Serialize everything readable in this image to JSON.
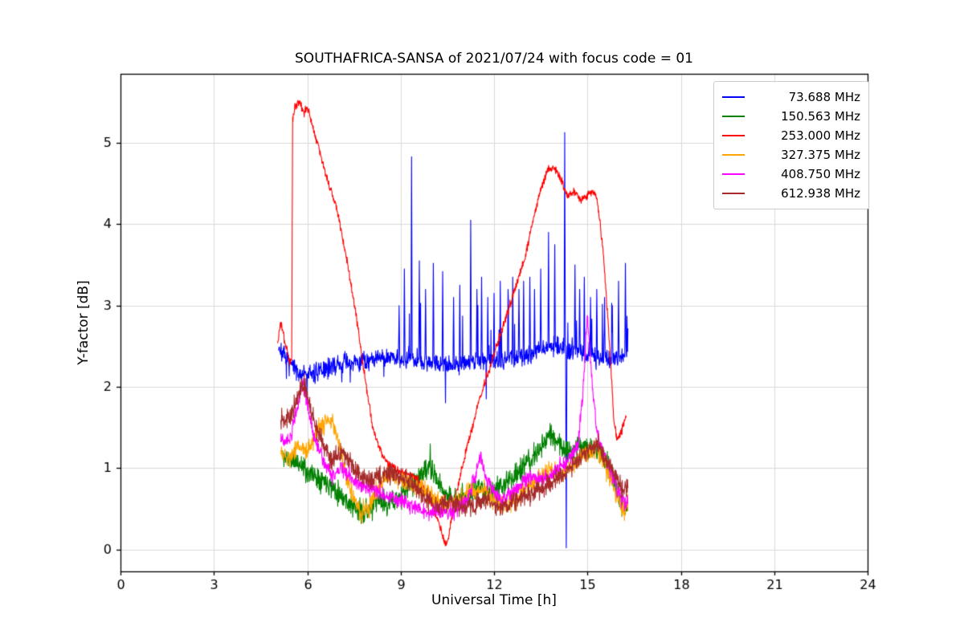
{
  "chart_data": {
    "type": "line",
    "title": "SOUTHAFRICA-SANSA of 2021/07/24 with focus code = 01",
    "xlabel": "Universal Time [h]",
    "ylabel": "Y-factor [dB]",
    "xlim": [
      0,
      24
    ],
    "ylim": [
      -0.27,
      5.85
    ],
    "xticks": [
      0,
      3,
      6,
      9,
      12,
      15,
      18,
      21,
      24
    ],
    "yticks": [
      0,
      1,
      2,
      3,
      4,
      5
    ],
    "grid": true,
    "legend_position": "upper right",
    "series": [
      {
        "name": "73.688 MHz",
        "label": " 73.688 MHz",
        "color": "#0000ff",
        "noise": 0.12,
        "hairy": true,
        "seed": 7,
        "anchors": [
          [
            5.08,
            2.5
          ],
          [
            5.3,
            2.35
          ],
          [
            5.6,
            2.2
          ],
          [
            6.0,
            2.15
          ],
          [
            6.5,
            2.2
          ],
          [
            7.0,
            2.28
          ],
          [
            7.5,
            2.3
          ],
          [
            8.0,
            2.33
          ],
          [
            8.5,
            2.38
          ],
          [
            9.0,
            2.35
          ],
          [
            9.5,
            2.33
          ],
          [
            10.0,
            2.3
          ],
          [
            10.5,
            2.27
          ],
          [
            11.0,
            2.3
          ],
          [
            11.5,
            2.33
          ],
          [
            12.0,
            2.3
          ],
          [
            12.5,
            2.34
          ],
          [
            13.0,
            2.4
          ],
          [
            13.5,
            2.45
          ],
          [
            14.0,
            2.5
          ],
          [
            14.5,
            2.45
          ],
          [
            15.0,
            2.4
          ],
          [
            15.5,
            2.35
          ],
          [
            16.0,
            2.32
          ],
          [
            16.3,
            2.45
          ]
        ],
        "spikes": [
          [
            8.95,
            3.0
          ],
          [
            9.12,
            3.45
          ],
          [
            9.35,
            4.83
          ],
          [
            9.6,
            3.55
          ],
          [
            9.8,
            3.2
          ],
          [
            10.05,
            3.52
          ],
          [
            10.35,
            3.42
          ],
          [
            10.7,
            3.1
          ],
          [
            10.9,
            3.25
          ],
          [
            11.25,
            4.05
          ],
          [
            11.45,
            3.2
          ],
          [
            11.6,
            3.35
          ],
          [
            11.8,
            3.1
          ],
          [
            12.0,
            3.15
          ],
          [
            12.2,
            3.3
          ],
          [
            12.45,
            3.2
          ],
          [
            12.6,
            3.35
          ],
          [
            12.8,
            3.2
          ],
          [
            12.95,
            3.3
          ],
          [
            13.15,
            3.35
          ],
          [
            13.3,
            3.2
          ],
          [
            13.5,
            3.45
          ],
          [
            13.75,
            3.9
          ],
          [
            13.95,
            3.75
          ],
          [
            14.27,
            5.13
          ],
          [
            14.32,
            0.02
          ],
          [
            14.6,
            3.5
          ],
          [
            14.75,
            3.2
          ],
          [
            14.9,
            3.35
          ],
          [
            15.1,
            3.1
          ],
          [
            15.3,
            3.2
          ],
          [
            15.55,
            3.1
          ],
          [
            15.8,
            3.0
          ],
          [
            16.0,
            3.3
          ],
          [
            16.22,
            3.52
          ]
        ]
      },
      {
        "name": "150.563 MHz",
        "label": "150.563 MHz",
        "color": "#008000",
        "noise": 0.14,
        "hairy": false,
        "seed": 11,
        "anchors": [
          [
            5.2,
            1.15
          ],
          [
            5.5,
            1.1
          ],
          [
            5.8,
            1.05
          ],
          [
            6.0,
            0.95
          ],
          [
            6.3,
            0.9
          ],
          [
            6.6,
            0.85
          ],
          [
            7.0,
            0.7
          ],
          [
            7.4,
            0.55
          ],
          [
            7.7,
            0.45
          ],
          [
            8.0,
            0.5
          ],
          [
            8.3,
            0.6
          ],
          [
            8.6,
            0.55
          ],
          [
            9.0,
            0.65
          ],
          [
            9.3,
            0.8
          ],
          [
            9.6,
            0.9
          ],
          [
            9.9,
            1.0
          ],
          [
            10.1,
            0.9
          ],
          [
            10.4,
            0.7
          ],
          [
            10.7,
            0.6
          ],
          [
            11.0,
            0.65
          ],
          [
            11.3,
            0.7
          ],
          [
            11.6,
            0.75
          ],
          [
            12.0,
            0.7
          ],
          [
            12.3,
            0.8
          ],
          [
            12.6,
            0.9
          ],
          [
            12.9,
            1.0
          ],
          [
            13.2,
            1.1
          ],
          [
            13.5,
            1.25
          ],
          [
            13.8,
            1.4
          ],
          [
            14.1,
            1.3
          ],
          [
            14.4,
            1.2
          ],
          [
            14.7,
            1.3
          ],
          [
            15.0,
            1.25
          ],
          [
            15.3,
            1.2
          ],
          [
            15.6,
            1.1
          ],
          [
            15.9,
            0.8
          ],
          [
            16.1,
            0.5
          ],
          [
            16.3,
            0.55
          ]
        ],
        "spikes": [
          [
            9.95,
            1.3
          ],
          [
            13.8,
            1.55
          ]
        ]
      },
      {
        "name": "253.000 MHz",
        "label": "253.000 MHz",
        "color": "#ff0000",
        "noise": 0.05,
        "hairy": false,
        "seed": 3,
        "anchors": [
          [
            5.05,
            2.55
          ],
          [
            5.15,
            2.8
          ],
          [
            5.3,
            2.5
          ],
          [
            5.45,
            2.3
          ],
          [
            5.5,
            2.35
          ],
          [
            5.53,
            5.3
          ],
          [
            5.6,
            5.45
          ],
          [
            5.75,
            5.5
          ],
          [
            5.9,
            5.35
          ],
          [
            6.0,
            5.45
          ],
          [
            6.1,
            5.3
          ],
          [
            6.3,
            5.05
          ],
          [
            6.6,
            4.6
          ],
          [
            6.9,
            4.25
          ],
          [
            7.0,
            4.1
          ],
          [
            7.3,
            3.5
          ],
          [
            7.6,
            2.8
          ],
          [
            7.9,
            2.0
          ],
          [
            8.1,
            1.5
          ],
          [
            8.3,
            1.25
          ],
          [
            8.6,
            1.05
          ],
          [
            9.0,
            0.95
          ],
          [
            9.4,
            0.9
          ],
          [
            9.7,
            0.8
          ],
          [
            10.0,
            0.55
          ],
          [
            10.2,
            0.35
          ],
          [
            10.45,
            0.05
          ],
          [
            10.55,
            0.15
          ],
          [
            10.7,
            0.55
          ],
          [
            11.0,
            1.05
          ],
          [
            11.5,
            1.8
          ],
          [
            12.0,
            2.4
          ],
          [
            12.5,
            3.0
          ],
          [
            13.0,
            3.6
          ],
          [
            13.4,
            4.3
          ],
          [
            13.7,
            4.65
          ],
          [
            13.9,
            4.7
          ],
          [
            14.1,
            4.6
          ],
          [
            14.35,
            4.35
          ],
          [
            14.6,
            4.4
          ],
          [
            14.8,
            4.3
          ],
          [
            15.1,
            4.4
          ],
          [
            15.3,
            4.35
          ],
          [
            15.5,
            3.7
          ],
          [
            15.7,
            2.6
          ],
          [
            15.85,
            1.6
          ],
          [
            15.95,
            1.35
          ],
          [
            16.1,
            1.45
          ],
          [
            16.25,
            1.65
          ]
        ],
        "spikes": []
      },
      {
        "name": "327.375 MHz",
        "label": "327.375 MHz",
        "color": "#ffa500",
        "noise": 0.12,
        "hairy": false,
        "seed": 5,
        "anchors": [
          [
            5.15,
            1.2
          ],
          [
            5.4,
            1.1
          ],
          [
            5.7,
            1.3
          ],
          [
            6.0,
            1.2
          ],
          [
            6.3,
            1.45
          ],
          [
            6.6,
            1.6
          ],
          [
            6.9,
            1.5
          ],
          [
            7.2,
            1.0
          ],
          [
            7.5,
            0.6
          ],
          [
            7.75,
            0.45
          ],
          [
            8.0,
            0.55
          ],
          [
            8.3,
            0.8
          ],
          [
            8.6,
            0.9
          ],
          [
            9.0,
            0.85
          ],
          [
            9.3,
            0.8
          ],
          [
            9.6,
            0.75
          ],
          [
            9.9,
            0.7
          ],
          [
            10.2,
            0.6
          ],
          [
            10.5,
            0.55
          ],
          [
            10.8,
            0.6
          ],
          [
            11.1,
            0.7
          ],
          [
            11.4,
            0.75
          ],
          [
            11.7,
            0.7
          ],
          [
            12.0,
            0.6
          ],
          [
            12.3,
            0.55
          ],
          [
            12.6,
            0.6
          ],
          [
            12.9,
            0.7
          ],
          [
            13.2,
            0.8
          ],
          [
            13.5,
            0.9
          ],
          [
            13.8,
            1.0
          ],
          [
            14.1,
            0.9
          ],
          [
            14.4,
            1.0
          ],
          [
            14.7,
            1.1
          ],
          [
            15.0,
            1.2
          ],
          [
            15.3,
            1.25
          ],
          [
            15.6,
            1.0
          ],
          [
            15.9,
            0.7
          ],
          [
            16.1,
            0.5
          ],
          [
            16.3,
            0.55
          ]
        ],
        "spikes": []
      },
      {
        "name": "408.750 MHz",
        "label": "408.750 MHz",
        "color": "#ff00ff",
        "noise": 0.1,
        "hairy": false,
        "seed": 9,
        "anchors": [
          [
            5.15,
            1.35
          ],
          [
            5.4,
            1.3
          ],
          [
            5.6,
            1.6
          ],
          [
            5.85,
            2.05
          ],
          [
            6.0,
            1.8
          ],
          [
            6.2,
            1.4
          ],
          [
            6.5,
            1.1
          ],
          [
            6.8,
            0.9
          ],
          [
            7.1,
            1.0
          ],
          [
            7.4,
            0.9
          ],
          [
            7.7,
            0.8
          ],
          [
            8.0,
            0.75
          ],
          [
            8.3,
            0.7
          ],
          [
            8.6,
            0.65
          ],
          [
            9.0,
            0.6
          ],
          [
            9.3,
            0.55
          ],
          [
            9.6,
            0.5
          ],
          [
            9.9,
            0.45
          ],
          [
            10.2,
            0.5
          ],
          [
            10.5,
            0.45
          ],
          [
            10.8,
            0.5
          ],
          [
            11.1,
            0.6
          ],
          [
            11.4,
            0.9
          ],
          [
            11.55,
            1.15
          ],
          [
            11.7,
            0.9
          ],
          [
            12.0,
            0.7
          ],
          [
            12.3,
            0.6
          ],
          [
            12.6,
            0.7
          ],
          [
            12.9,
            0.8
          ],
          [
            13.2,
            0.9
          ],
          [
            13.5,
            0.85
          ],
          [
            13.8,
            0.9
          ],
          [
            14.1,
            1.0
          ],
          [
            14.4,
            1.1
          ],
          [
            14.7,
            1.3
          ],
          [
            14.85,
            1.9
          ],
          [
            15.0,
            2.9
          ],
          [
            15.1,
            2.3
          ],
          [
            15.25,
            1.6
          ],
          [
            15.4,
            1.3
          ],
          [
            15.6,
            1.1
          ],
          [
            15.9,
            0.8
          ],
          [
            16.1,
            0.6
          ],
          [
            16.3,
            0.6
          ]
        ],
        "spikes": []
      },
      {
        "name": "612.938 MHz",
        "label": "612.938 MHz",
        "color": "#a52a2a",
        "noise": 0.12,
        "hairy": false,
        "seed": 13,
        "anchors": [
          [
            5.15,
            1.65
          ],
          [
            5.4,
            1.6
          ],
          [
            5.6,
            1.75
          ],
          [
            5.85,
            2.05
          ],
          [
            6.0,
            1.9
          ],
          [
            6.2,
            1.6
          ],
          [
            6.5,
            1.3
          ],
          [
            6.8,
            1.1
          ],
          [
            7.1,
            1.2
          ],
          [
            7.4,
            1.05
          ],
          [
            7.7,
            0.9
          ],
          [
            8.0,
            0.85
          ],
          [
            8.3,
            0.9
          ],
          [
            8.6,
            0.95
          ],
          [
            9.0,
            0.9
          ],
          [
            9.3,
            0.85
          ],
          [
            9.6,
            0.7
          ],
          [
            9.9,
            0.6
          ],
          [
            10.2,
            0.55
          ],
          [
            10.5,
            0.6
          ],
          [
            10.8,
            0.55
          ],
          [
            11.1,
            0.5
          ],
          [
            11.4,
            0.55
          ],
          [
            11.7,
            0.6
          ],
          [
            12.0,
            0.55
          ],
          [
            12.3,
            0.5
          ],
          [
            12.6,
            0.6
          ],
          [
            12.9,
            0.65
          ],
          [
            13.2,
            0.7
          ],
          [
            13.5,
            0.75
          ],
          [
            13.8,
            0.8
          ],
          [
            14.1,
            0.9
          ],
          [
            14.4,
            1.0
          ],
          [
            14.7,
            1.1
          ],
          [
            15.0,
            1.2
          ],
          [
            15.3,
            1.3
          ],
          [
            15.6,
            1.1
          ],
          [
            15.9,
            0.9
          ],
          [
            16.1,
            0.75
          ],
          [
            16.3,
            0.8
          ]
        ],
        "spikes": []
      }
    ]
  }
}
